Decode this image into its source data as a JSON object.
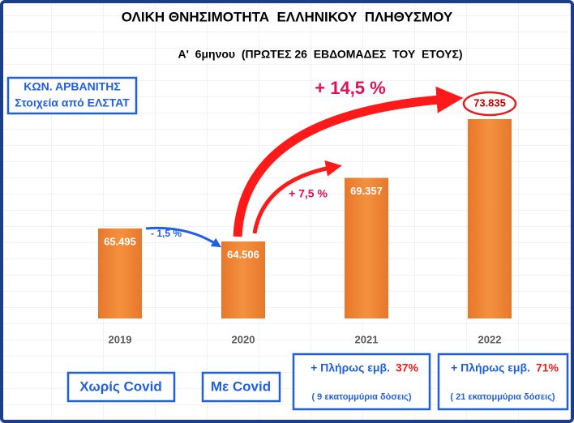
{
  "chart_data": {
    "type": "bar",
    "title": "ΟΛΙΚΗ ΘΝΗΣΙΜΟΤΗΤΑ  ΕΛΛΗΝΙΚΟΥ  ΠΛΗΘΥΣΜΟΥ",
    "subtitle": "Α'  6μηνου  (ΠΡΩΤΕΣ 26  ΕΒΔΟΜΑΔΕΣ  ΤΟΥ  ΕΤΟΥΣ)",
    "categories": [
      "2019",
      "2020",
      "2021",
      "2022"
    ],
    "values": [
      65495,
      64506,
      69357,
      73835
    ],
    "value_labels": [
      "65.495",
      "64.506",
      "69.357",
      "73.835"
    ],
    "color": "#ed7d31",
    "annotations": {
      "source": {
        "name": "ΚΩΝ. ΑΡΒΑΝΙΤΗΣ",
        "note": "Στοιχεία από ΕΛΣΤΑΤ"
      },
      "changes": [
        "- 1,5 %",
        "+ 7,5 %",
        "+ 14,5 %"
      ],
      "periods": [
        "Χωρίς Covid",
        "Με Covid"
      ],
      "vaccination": [
        {
          "text": "+ Πλήρως εμβ.",
          "rate": "37%",
          "doses": "( 9 εκατομμύρια δόσεις)"
        },
        {
          "text": "+ Πλήρως εμβ.",
          "rate": "71%",
          "doses": "( 21 εκατομμύρια δόσεις)"
        }
      ]
    }
  }
}
